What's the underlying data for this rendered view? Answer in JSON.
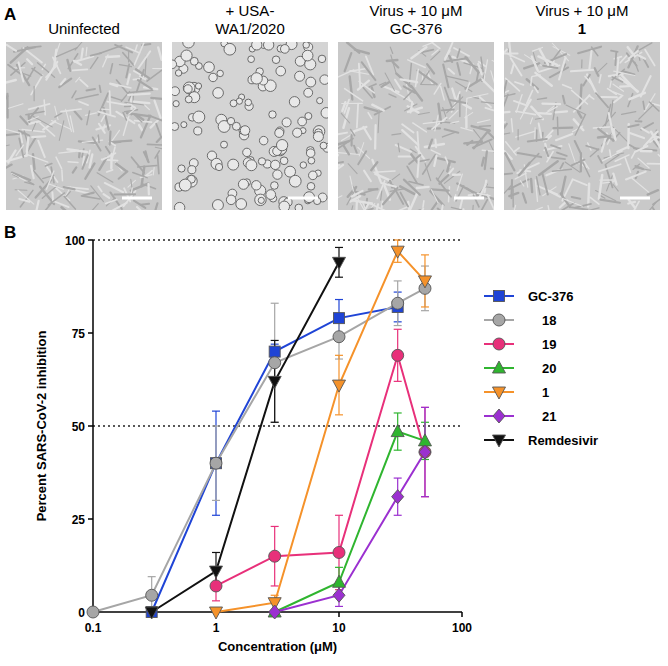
{
  "panel_a": {
    "label": "A",
    "images": [
      {
        "caption": [
          "Uninfected"
        ]
      },
      {
        "caption": [
          "+ USA-",
          "WA1/2020"
        ]
      },
      {
        "caption": [
          "Virus + 10 μM",
          "GC-376"
        ]
      },
      {
        "caption": [
          "Virus + 10 μM",
          "1"
        ]
      }
    ]
  },
  "panel_b": {
    "label": "B"
  },
  "chart_data": {
    "type": "line",
    "x_label": "Concentration (μM)",
    "y_label": "Percent SARS-CoV-2 inhibition",
    "log": "x",
    "xlim": [
      0.1,
      100
    ],
    "xticks": [
      0.1,
      1,
      10,
      100
    ],
    "ylim": [
      0,
      100
    ],
    "yticks": [
      0,
      25,
      50,
      75,
      100
    ],
    "reference_lines": [
      50,
      100
    ],
    "legend": "right",
    "series": [
      {
        "name": "GC-376",
        "color": "#1f44d6",
        "marker": "square",
        "x": [
          0.3,
          1,
          3,
          10,
          30
        ],
        "values": [
          0,
          40,
          70,
          79,
          82
        ],
        "errors": [
          0,
          14,
          2,
          5,
          4
        ]
      },
      {
        "name": "18",
        "color": "#a6a6a6",
        "marker": "circle",
        "x": [
          0.1,
          0.3,
          1,
          3,
          10,
          30,
          50
        ],
        "values": [
          0,
          4.5,
          40,
          67,
          74,
          83,
          87
        ],
        "errors": [
          0,
          5,
          10,
          16,
          6,
          6,
          6
        ]
      },
      {
        "name": "19",
        "color": "#e8307a",
        "marker": "circle",
        "x": [
          1,
          3,
          10,
          30,
          50
        ],
        "values": [
          7,
          15,
          16,
          69,
          43
        ],
        "errors": [
          4,
          8,
          10,
          7,
          12
        ]
      },
      {
        "name": "20",
        "color": "#2fb52f",
        "marker": "triangle-up",
        "x": [
          3,
          10,
          30,
          50
        ],
        "values": [
          0,
          8,
          48.5,
          46
        ],
        "errors": [
          0,
          4,
          5,
          5
        ]
      },
      {
        "name": "1",
        "color": "#f5922a",
        "marker": "triangle-down",
        "x": [
          1,
          3,
          10,
          30,
          50
        ],
        "values": [
          0,
          2.5,
          61,
          97,
          89
        ],
        "errors": [
          0,
          2,
          8,
          3,
          7
        ]
      },
      {
        "name": "21",
        "color": "#9b30d0",
        "marker": "diamond",
        "x": [
          3,
          10,
          30,
          50
        ],
        "values": [
          0,
          4.5,
          31,
          43
        ],
        "errors": [
          0,
          3,
          5,
          12
        ]
      },
      {
        "name": "Remdesivir",
        "color": "#111111",
        "marker": "triangle-down",
        "x": [
          0.3,
          1,
          3,
          10
        ],
        "values": [
          0,
          11,
          62,
          94
        ],
        "errors": [
          0,
          5,
          11,
          4
        ]
      }
    ]
  }
}
